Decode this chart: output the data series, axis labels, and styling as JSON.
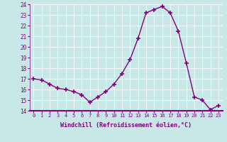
{
  "x": [
    0,
    1,
    2,
    3,
    4,
    5,
    6,
    7,
    8,
    9,
    10,
    11,
    12,
    13,
    14,
    15,
    16,
    17,
    18,
    19,
    20,
    21,
    22,
    23
  ],
  "y": [
    17.0,
    16.9,
    16.5,
    16.1,
    16.0,
    15.8,
    15.5,
    14.8,
    15.3,
    15.8,
    16.5,
    17.5,
    18.8,
    20.8,
    23.2,
    23.5,
    23.8,
    23.2,
    21.5,
    18.5,
    15.3,
    15.0,
    14.1,
    14.5
  ],
  "line_color": "#800080",
  "marker": "+",
  "marker_size": 4,
  "bg_color": "#c8e8e8",
  "grid_color": "#b0d8d8",
  "xlabel": "Windchill (Refroidissement éolien,°C)",
  "tick_color": "#800080",
  "ylim": [
    14,
    24
  ],
  "xlim": [
    -0.5,
    23.5
  ],
  "yticks": [
    14,
    15,
    16,
    17,
    18,
    19,
    20,
    21,
    22,
    23,
    24
  ],
  "xticks": [
    0,
    1,
    2,
    3,
    4,
    5,
    6,
    7,
    8,
    9,
    10,
    11,
    12,
    13,
    14,
    15,
    16,
    17,
    18,
    19,
    20,
    21,
    22,
    23
  ],
  "xtick_labels": [
    "0",
    "1",
    "2",
    "3",
    "4",
    "5",
    "6",
    "7",
    "8",
    "9",
    "10",
    "11",
    "12",
    "13",
    "14",
    "15",
    "16",
    "17",
    "18",
    "19",
    "20",
    "21",
    "22",
    "23"
  ],
  "line_width": 1.0
}
